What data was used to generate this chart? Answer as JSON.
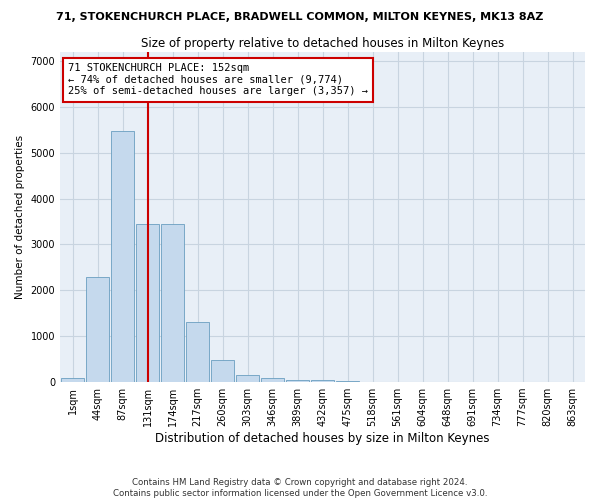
{
  "title": "71, STOKENCHURCH PLACE, BRADWELL COMMON, MILTON KEYNES, MK13 8AZ",
  "subtitle": "Size of property relative to detached houses in Milton Keynes",
  "xlabel": "Distribution of detached houses by size in Milton Keynes",
  "ylabel": "Number of detached properties",
  "footer_line1": "Contains HM Land Registry data © Crown copyright and database right 2024.",
  "footer_line2": "Contains public sector information licensed under the Open Government Licence v3.0.",
  "bar_labels": [
    "1sqm",
    "44sqm",
    "87sqm",
    "131sqm",
    "174sqm",
    "217sqm",
    "260sqm",
    "303sqm",
    "346sqm",
    "389sqm",
    "432sqm",
    "475sqm",
    "518sqm",
    "561sqm",
    "604sqm",
    "648sqm",
    "691sqm",
    "734sqm",
    "777sqm",
    "820sqm",
    "863sqm"
  ],
  "bar_values": [
    80,
    2280,
    5480,
    3450,
    3450,
    1320,
    480,
    165,
    90,
    55,
    35,
    15,
    8,
    4,
    2,
    1,
    0,
    0,
    0,
    0,
    0
  ],
  "bar_color": "#c5d9ed",
  "bar_edge_color": "#6a9ec0",
  "grid_color": "#c8d4e0",
  "background_color": "#e8eff7",
  "red_line_x": 3.0,
  "annotation_text": "71 STOKENCHURCH PLACE: 152sqm\n← 74% of detached houses are smaller (9,774)\n25% of semi-detached houses are larger (3,357) →",
  "annotation_box_color": "#ffffff",
  "annotation_box_edge": "#cc0000",
  "ylim": [
    0,
    7200
  ],
  "yticks": [
    0,
    1000,
    2000,
    3000,
    4000,
    5000,
    6000,
    7000
  ],
  "title_fontsize": 8.0,
  "subtitle_fontsize": 8.5,
  "xlabel_fontsize": 8.5,
  "ylabel_fontsize": 7.5,
  "tick_fontsize": 7.0,
  "annotation_fontsize": 7.5,
  "footer_fontsize": 6.2
}
